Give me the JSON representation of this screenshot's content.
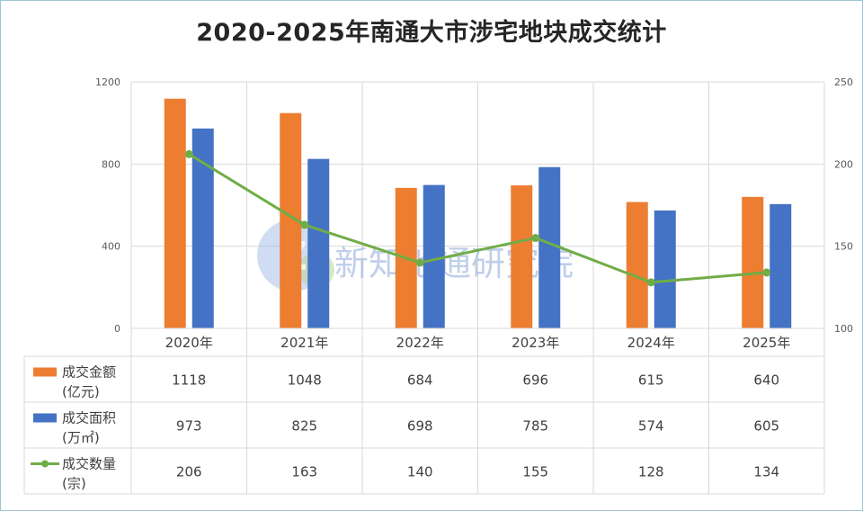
{
  "title": "2020-2025年南通大市涉宅地块成交统计",
  "watermark": "新知地通研究院",
  "colors": {
    "amount": "#ED7D31",
    "area": "#4472C4",
    "count": "#70AD47",
    "grid": "#D9D9D9",
    "text": "#404040",
    "axis_text": "#595959"
  },
  "chart_data": {
    "type": "bar",
    "categories": [
      "2020年",
      "2021年",
      "2022年",
      "2023年",
      "2024年",
      "2025年"
    ],
    "y_left": {
      "ticks": [
        "0",
        "400",
        "800",
        "1200"
      ],
      "range": [
        0,
        1200
      ]
    },
    "y_right": {
      "ticks": [
        "100",
        "150",
        "200",
        "250"
      ],
      "range": [
        100,
        250
      ]
    },
    "grid": true,
    "legend": "data-table",
    "series": [
      {
        "key": "amount",
        "kind": "bar",
        "axis": "left",
        "name_line1": "成交金额",
        "name_line2": "(亿元)",
        "values": [
          1118,
          1048,
          684,
          696,
          615,
          640
        ]
      },
      {
        "key": "area",
        "kind": "bar",
        "axis": "left",
        "name_line1": "成交面积",
        "name_line2": "(万㎡)",
        "values": [
          973,
          825,
          698,
          785,
          574,
          605
        ]
      },
      {
        "key": "count",
        "kind": "line",
        "axis": "right",
        "name_line1": "成交数量",
        "name_line2": "(宗)",
        "values": [
          206,
          163,
          140,
          155,
          128,
          134
        ]
      }
    ]
  }
}
